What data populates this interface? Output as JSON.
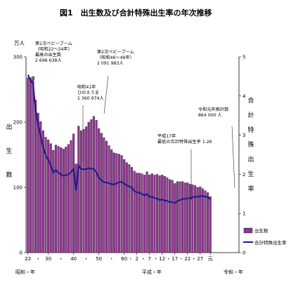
{
  "title": "図1　出生数及び合計特殊出生率の年次推移",
  "chart_data": {
    "type": "bar",
    "left_axis": {
      "unit": "万人",
      "label": "出生数",
      "ticks": [
        "0",
        "100",
        "200",
        "300"
      ],
      "ylim": [
        0,
        300
      ]
    },
    "right_axis": {
      "label": "合計特殊出生率",
      "ticks": [
        "0",
        "1",
        "2",
        "3",
        "4",
        "5"
      ],
      "ylim": [
        0,
        5
      ]
    },
    "x_ticks": [
      "22",
      "30",
      "40",
      "50",
      "60",
      "2",
      "7",
      "12",
      "17",
      "22",
      "27",
      "元"
    ],
    "x_era_labels": [
      "昭和・年",
      "平成・年",
      "令和・年"
    ],
    "dot_separator": "・",
    "categories": [
      "1947",
      "1948",
      "1949",
      "1950",
      "1951",
      "1952",
      "1953",
      "1954",
      "1955",
      "1956",
      "1957",
      "1958",
      "1959",
      "1960",
      "1961",
      "1962",
      "1963",
      "1964",
      "1965",
      "1966",
      "1967",
      "1968",
      "1969",
      "1970",
      "1971",
      "1972",
      "1973",
      "1974",
      "1975",
      "1976",
      "1977",
      "1978",
      "1979",
      "1980",
      "1981",
      "1982",
      "1983",
      "1984",
      "1985",
      "1986",
      "1987",
      "1988",
      "1989",
      "1990",
      "1991",
      "1992",
      "1993",
      "1994",
      "1995",
      "1996",
      "1997",
      "1998",
      "1999",
      "2000",
      "2001",
      "2002",
      "2003",
      "2004",
      "2005",
      "2006",
      "2007",
      "2008",
      "2009",
      "2010",
      "2011",
      "2012",
      "2013",
      "2014",
      "2015",
      "2016",
      "2017",
      "2018",
      "2019"
    ],
    "series": [
      {
        "name": "出生数",
        "axis": "left",
        "color": "#8a3a8a",
        "values": [
          268,
          268,
          270,
          234,
          214,
          201,
          187,
          177,
          173,
          167,
          157,
          165,
          163,
          161,
          159,
          162,
          166,
          172,
          182,
          136,
          194,
          187,
          189,
          193,
          200,
          204,
          209,
          203,
          190,
          183,
          176,
          171,
          164,
          158,
          153,
          152,
          151,
          149,
          143,
          138,
          135,
          131,
          125,
          122,
          122,
          121,
          119,
          124,
          119,
          121,
          119,
          120,
          118,
          119,
          117,
          115,
          112,
          111,
          106,
          109,
          109,
          109,
          107,
          107,
          105,
          104,
          103,
          100,
          101,
          98,
          95,
          92,
          86
        ]
      },
      {
        "name": "合計特殊出生率",
        "axis": "right",
        "color": "#1a1a8a",
        "values": [
          4.54,
          4.4,
          4.32,
          3.65,
          3.26,
          2.98,
          2.69,
          2.48,
          2.37,
          2.22,
          2.04,
          2.11,
          2.04,
          2.0,
          1.96,
          1.98,
          2.0,
          2.05,
          2.14,
          1.58,
          2.23,
          2.13,
          2.13,
          2.13,
          2.16,
          2.14,
          2.14,
          2.05,
          1.91,
          1.85,
          1.8,
          1.79,
          1.77,
          1.75,
          1.74,
          1.77,
          1.8,
          1.81,
          1.76,
          1.72,
          1.69,
          1.66,
          1.57,
          1.54,
          1.53,
          1.5,
          1.46,
          1.5,
          1.42,
          1.43,
          1.39,
          1.38,
          1.34,
          1.36,
          1.33,
          1.32,
          1.29,
          1.29,
          1.26,
          1.32,
          1.34,
          1.37,
          1.37,
          1.39,
          1.39,
          1.41,
          1.43,
          1.42,
          1.45,
          1.44,
          1.43,
          1.42,
          1.36
        ]
      }
    ],
    "annotations": [
      {
        "id": "boom1",
        "lines": [
          "第1次ベビーブーム",
          "（昭和22～24年）",
          "最高の出生数",
          "2 696 638人"
        ]
      },
      {
        "id": "hinoeuma",
        "lines": [
          "昭和41年",
          "ひのえうま",
          "1 360 974人"
        ]
      },
      {
        "id": "boom2",
        "lines": [
          "第2次ベビーブーム",
          "（昭和46～49年）",
          "2 091 983人"
        ]
      },
      {
        "id": "lowest",
        "lines": [
          "平成17年",
          "最低の合計特殊出生率 1.26"
        ]
      },
      {
        "id": "reiwa",
        "lines": [
          "令和元年推計数",
          "864 000 人"
        ]
      }
    ]
  }
}
